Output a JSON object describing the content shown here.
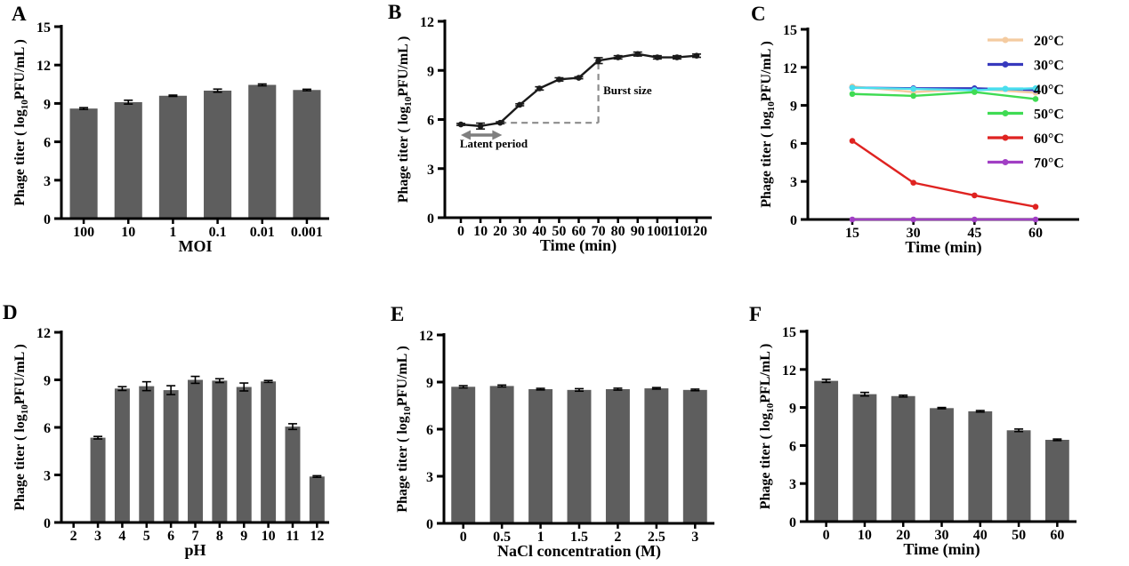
{
  "panels": [
    {
      "letter": "A"
    },
    {
      "letter": "B"
    },
    {
      "letter": "C"
    },
    {
      "letter": "D"
    },
    {
      "letter": "E"
    },
    {
      "letter": "F"
    }
  ],
  "colors": {
    "bar": "#5e5e5e",
    "axis": "#000000",
    "line_black": "#1a1a1a",
    "annotation_gray": "#7f7f7f",
    "dash_gray": "#8c8c8c"
  },
  "chart_data": [
    {
      "type": "bar",
      "categories": [
        "100",
        "10",
        "1",
        "0.1",
        "0.01",
        "0.001"
      ],
      "values": [
        8.6,
        9.1,
        9.6,
        10.0,
        10.45,
        10.05
      ],
      "errors": [
        0.07,
        0.15,
        0.05,
        0.12,
        0.07,
        0.06
      ],
      "xlabel": "MOI",
      "ylabel_pre": "Phage titer ( log",
      "ylabel_sub": "10",
      "ylabel_post": "PFU/mL )",
      "ylim": [
        0,
        15
      ],
      "yticks": [
        0,
        3,
        6,
        9,
        12,
        15
      ],
      "grid": false,
      "bar_color": "#5e5e5e"
    },
    {
      "type": "line",
      "x": [
        0,
        10,
        20,
        30,
        40,
        50,
        60,
        70,
        80,
        90,
        100,
        110,
        120
      ],
      "series": [
        {
          "name": "phage-titer",
          "color": "#1a1a1a",
          "values": [
            5.7,
            5.6,
            5.8,
            6.9,
            7.9,
            8.45,
            8.55,
            9.6,
            9.8,
            10.0,
            9.8,
            9.8,
            9.9
          ],
          "errors": [
            0.06,
            0.18,
            0.06,
            0.06,
            0.1,
            0.1,
            0.06,
            0.18,
            0.1,
            0.12,
            0.1,
            0.1,
            0.1
          ]
        }
      ],
      "xlabel": "Time (min)",
      "ylabel_pre": "Phage titer ( log",
      "ylabel_sub": "10",
      "ylabel_post": "PFU/mL )",
      "ylim": [
        0,
        12
      ],
      "yticks": [
        0,
        3,
        6,
        9,
        12
      ],
      "grid": false,
      "annotations": [
        {
          "type": "double-arrow",
          "x1": 0,
          "x2": 21,
          "y": 5.05,
          "color": "#7f7f7f"
        },
        {
          "type": "text",
          "label": "Latent period",
          "x": -0.5,
          "y": 4.3,
          "anchor": "start"
        },
        {
          "type": "dashed-line",
          "x1": 20,
          "y1": 5.8,
          "x2": 70,
          "y2": 5.8,
          "color": "#8c8c8c"
        },
        {
          "type": "dashed-line",
          "x1": 70,
          "y1": 5.8,
          "x2": 70,
          "y2": 9.6,
          "color": "#8c8c8c"
        },
        {
          "type": "text",
          "label": "Burst size",
          "x": 72.5,
          "y": 7.55,
          "anchor": "start"
        }
      ]
    },
    {
      "type": "line",
      "x": [
        15,
        30,
        45,
        60
      ],
      "series": [
        {
          "name": "20°C",
          "color": "#F4CBA0",
          "values": [
            10.5,
            10.05,
            10.3,
            10.0
          ]
        },
        {
          "name": "30°C",
          "color": "#3739BD",
          "values": [
            10.4,
            10.35,
            10.35,
            10.2
          ]
        },
        {
          "name": "40°C",
          "color": "#4ADEEE",
          "values": [
            10.4,
            10.3,
            10.2,
            10.35
          ]
        },
        {
          "name": "50°C",
          "color": "#3FDB53",
          "values": [
            9.9,
            9.75,
            10.05,
            9.5
          ]
        },
        {
          "name": "60°C",
          "color": "#DF2321",
          "values": [
            6.2,
            2.9,
            1.9,
            1.0
          ]
        },
        {
          "name": "70°C",
          "color": "#A13FC4",
          "values": [
            0,
            0,
            0,
            0
          ]
        }
      ],
      "xlabel": "Time (min)",
      "ylabel_pre": "Phage titer ( log",
      "ylabel_sub": "10",
      "ylabel_post": "PFU/mL )",
      "ylim": [
        0,
        15
      ],
      "yticks": [
        0,
        3,
        6,
        9,
        12,
        15
      ],
      "grid": false,
      "legend": true,
      "legend_position": "right-outside"
    },
    {
      "type": "bar",
      "categories": [
        "2",
        "3",
        "4",
        "5",
        "6",
        "7",
        "8",
        "9",
        "10",
        "11",
        "12"
      ],
      "values": [
        0,
        5.35,
        8.45,
        8.6,
        8.35,
        9.0,
        8.95,
        8.55,
        8.9,
        6.05,
        2.9
      ],
      "errors": [
        0,
        0.08,
        0.12,
        0.28,
        0.28,
        0.22,
        0.12,
        0.25,
        0.06,
        0.18,
        0.05
      ],
      "xlabel": "pH",
      "ylabel_pre": "Phage titer ( log",
      "ylabel_sub": "10",
      "ylabel_post": "PFU/mL )",
      "ylim": [
        0,
        12
      ],
      "yticks": [
        0,
        3,
        6,
        9,
        12
      ],
      "grid": false,
      "bar_color": "#5e5e5e"
    },
    {
      "type": "bar",
      "categories": [
        "0",
        "0.5",
        "1",
        "1.5",
        "2",
        "2.5",
        "3"
      ],
      "values": [
        8.7,
        8.75,
        8.55,
        8.5,
        8.55,
        8.6,
        8.5
      ],
      "errors": [
        0.07,
        0.06,
        0.05,
        0.08,
        0.06,
        0.05,
        0.05
      ],
      "xlabel": "NaCl concentration (M)",
      "ylabel_pre": "Phage titer ( log",
      "ylabel_sub": "10",
      "ylabel_post": "PFU/mL )",
      "ylim": [
        0,
        12
      ],
      "yticks": [
        0,
        3,
        6,
        9,
        12
      ],
      "grid": false,
      "bar_color": "#5e5e5e"
    },
    {
      "type": "bar",
      "categories": [
        "0",
        "10",
        "20",
        "30",
        "40",
        "50",
        "60"
      ],
      "values": [
        11.1,
        10.05,
        9.9,
        8.95,
        8.7,
        7.2,
        6.45
      ],
      "errors": [
        0.12,
        0.14,
        0.07,
        0.05,
        0.06,
        0.1,
        0.06
      ],
      "xlabel": "Time (min)",
      "ylabel_pre": "Phage titer ( log",
      "ylabel_sub": "10",
      "ylabel_post": "PFL/mL )",
      "ylim": [
        0,
        15
      ],
      "yticks": [
        0,
        3,
        6,
        9,
        12,
        15
      ],
      "grid": false,
      "bar_color": "#5e5e5e"
    }
  ]
}
